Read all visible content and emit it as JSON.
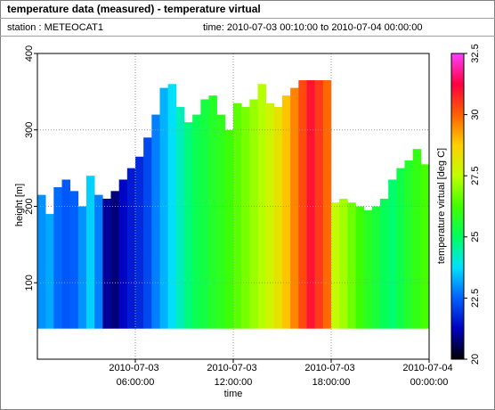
{
  "chart_data": {
    "type": "heatmap",
    "title": "temperature data (measured) - temperature virtual",
    "station": "station : METEOCAT1",
    "period": "time: 2010-07-03 00:10:00 to 2010-07-04 00:00:00",
    "x_label": "time",
    "y_label": "height [m]",
    "colorbar_label": "temperature virtual [deg C]",
    "x": [
      "2010-07-03 00:00:00",
      "2010-07-03 00:30:00",
      "2010-07-03 01:00:00",
      "2010-07-03 01:30:00",
      "2010-07-03 02:00:00",
      "2010-07-03 02:30:00",
      "2010-07-03 03:00:00",
      "2010-07-03 03:30:00",
      "2010-07-03 04:00:00",
      "2010-07-03 04:30:00",
      "2010-07-03 05:00:00",
      "2010-07-03 05:30:00",
      "2010-07-03 06:00:00",
      "2010-07-03 06:30:00",
      "2010-07-03 07:00:00",
      "2010-07-03 07:30:00",
      "2010-07-03 08:00:00",
      "2010-07-03 08:30:00",
      "2010-07-03 09:00:00",
      "2010-07-03 09:30:00",
      "2010-07-03 10:00:00",
      "2010-07-03 10:30:00",
      "2010-07-03 11:00:00",
      "2010-07-03 11:30:00",
      "2010-07-03 12:00:00",
      "2010-07-03 12:30:00",
      "2010-07-03 13:00:00",
      "2010-07-03 13:30:00",
      "2010-07-03 14:00:00",
      "2010-07-03 14:30:00",
      "2010-07-03 15:00:00",
      "2010-07-03 15:30:00",
      "2010-07-03 16:00:00",
      "2010-07-03 16:30:00",
      "2010-07-03 17:00:00",
      "2010-07-03 17:30:00",
      "2010-07-03 18:00:00",
      "2010-07-03 18:30:00",
      "2010-07-03 19:00:00",
      "2010-07-03 19:30:00",
      "2010-07-03 20:00:00",
      "2010-07-03 20:30:00",
      "2010-07-03 21:00:00",
      "2010-07-03 21:30:00",
      "2010-07-03 22:00:00",
      "2010-07-03 22:30:00",
      "2010-07-03 23:00:00",
      "2010-07-03 23:30:00"
    ],
    "values": [
      23,
      23.2,
      22.6,
      22.4,
      22.5,
      23,
      23.6,
      22.8,
      21,
      20.8,
      21.3,
      21.6,
      21.8,
      22.2,
      22.8,
      23.3,
      23.8,
      24.3,
      24.8,
      25.2,
      25.4,
      25.7,
      25.9,
      26.2,
      26.5,
      26.8,
      27.1,
      27.4,
      27.8,
      28.3,
      28.9,
      29.6,
      30.3,
      31,
      30.5,
      29.9,
      27.6,
      27.2,
      26.7,
      26.2,
      25.8,
      25.5,
      25.1,
      24.9,
      25.3,
      25.7,
      26,
      26.3
    ],
    "tops": [
      215,
      190,
      225,
      235,
      220,
      200,
      240,
      215,
      210,
      220,
      235,
      250,
      265,
      290,
      320,
      355,
      360,
      330,
      310,
      320,
      340,
      345,
      320,
      300,
      335,
      330,
      340,
      360,
      335,
      330,
      345,
      355,
      365,
      365,
      365,
      365,
      205,
      210,
      205,
      200,
      195,
      200,
      210,
      235,
      250,
      260,
      275,
      255
    ],
    "base": 40,
    "xlim": [
      "2010-07-03 00:00:00",
      "2010-07-04 00:00:00"
    ],
    "xticks": [
      {
        "value": "2010-07-03 06:00:00",
        "label": "2010-07-03 06:00:00"
      },
      {
        "value": "2010-07-03 12:00:00",
        "label": "2010-07-03 12:00:00"
      },
      {
        "value": "2010-07-03 18:00:00",
        "label": "2010-07-03 18:00:00"
      },
      {
        "value": "2010-07-04 00:00:00",
        "label": "2010-07-04 00:00:00"
      }
    ],
    "ylim": [
      0,
      400
    ],
    "yticks": [
      100,
      200,
      300,
      400
    ],
    "clim": [
      20,
      32.5
    ],
    "cticks": [
      20,
      22.5,
      25,
      27.5,
      30,
      32.5
    ],
    "colormap": [
      "#000000",
      "#0000c0",
      "#0060ff",
      "#00e0ff",
      "#00ff60",
      "#40ff00",
      "#c0ff00",
      "#ffd000",
      "#ff6000",
      "#ff0040",
      "#ff40ff"
    ],
    "grid": true
  }
}
